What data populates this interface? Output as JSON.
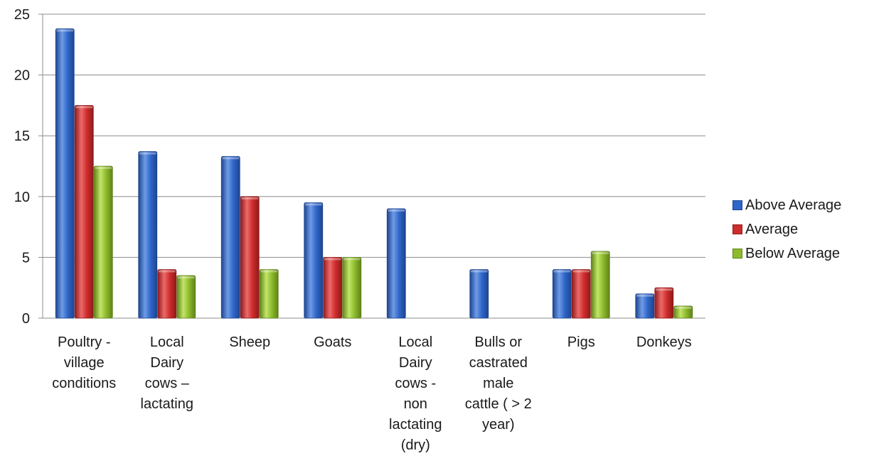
{
  "chart_data": {
    "type": "bar",
    "categories": [
      [
        "Poultry -",
        "village",
        "conditions"
      ],
      [
        "Local",
        "Dairy",
        "cows –",
        "lactating"
      ],
      [
        "Sheep"
      ],
      [
        "Goats"
      ],
      [
        "Local",
        "Dairy",
        "cows -",
        "non",
        "lactating",
        "(dry)"
      ],
      [
        "Bulls or",
        "castrated",
        "male",
        "cattle ( > 2",
        "year)"
      ],
      [
        "Pigs"
      ],
      [
        "Donkeys"
      ]
    ],
    "series": [
      {
        "name": "Above Average",
        "color": "#2f66c9",
        "light": "#6f9be6",
        "dark": "#1d4590",
        "values": [
          23.8,
          13.7,
          13.3,
          9.5,
          9.0,
          4.0,
          4.0,
          2.0
        ]
      },
      {
        "name": "Average",
        "color": "#cf2c2c",
        "light": "#ec6a6a",
        "dark": "#8f1a1a",
        "values": [
          17.5,
          4.0,
          10.0,
          5.0,
          null,
          null,
          4.0,
          2.5
        ]
      },
      {
        "name": "Below Average",
        "color": "#8dbb2c",
        "light": "#c2e56a",
        "dark": "#5f8218",
        "values": [
          12.5,
          3.5,
          4.0,
          5.0,
          null,
          null,
          5.5,
          1.0
        ]
      }
    ],
    "yticks": [
      "0",
      "5",
      "10",
      "15",
      "20",
      "25"
    ],
    "ylim": [
      0,
      25
    ],
    "grid": true,
    "legend_position": "right"
  }
}
